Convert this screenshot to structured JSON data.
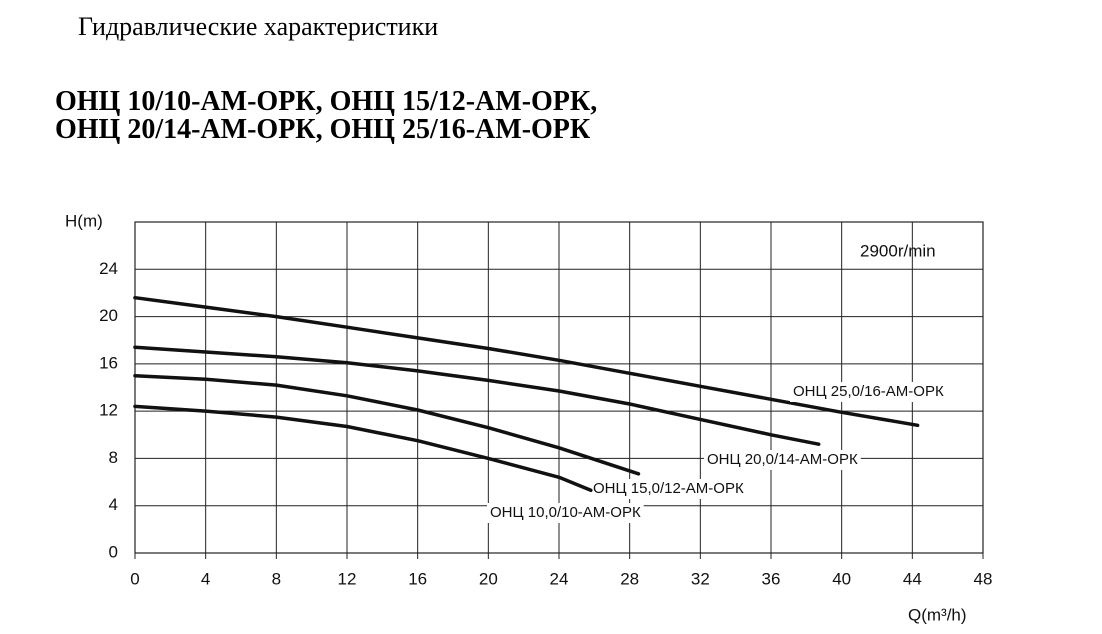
{
  "header": {
    "title": "Гидравлические характеристики",
    "models": [
      "ОНЦ 10/10-АМ-ОРК, ОНЦ 15/12-АМ-ОРК,",
      "ОНЦ 20/14-АМ-ОРК, ОНЦ 25/16-АМ-ОРК"
    ]
  },
  "chart_data": {
    "type": "line",
    "y_label": "H(m)",
    "x_label": "Q(m³/h)",
    "annotation": "2900r/min",
    "xlim": [
      0,
      48
    ],
    "xticks": [
      0,
      4,
      8,
      12,
      16,
      20,
      24,
      28,
      32,
      36,
      40,
      44,
      48
    ],
    "ylim": [
      0,
      28
    ],
    "yticks": [
      0,
      4,
      8,
      12,
      16,
      20,
      24
    ],
    "grid": true,
    "series": [
      {
        "name": "ОНЦ 25,0/16-АМ-ОРК",
        "color": "#111111",
        "x": [
          0,
          4,
          8,
          12,
          16,
          20,
          24,
          28,
          32,
          36,
          40,
          44.3
        ],
        "values": [
          21.6,
          20.8,
          20.0,
          19.1,
          18.2,
          17.3,
          16.3,
          15.2,
          14.1,
          13.0,
          11.9,
          10.8
        ]
      },
      {
        "name": "ОНЦ 20,0/14-АМ-ОРК",
        "color": "#111111",
        "x": [
          0,
          4,
          8,
          12,
          16,
          20,
          24,
          28,
          32,
          36,
          38.7
        ],
        "values": [
          17.4,
          17.0,
          16.6,
          16.1,
          15.4,
          14.6,
          13.7,
          12.6,
          11.3,
          10.0,
          9.2
        ]
      },
      {
        "name": "ОНЦ 15,0/12-АМ-ОРК",
        "color": "#111111",
        "x": [
          0,
          4,
          8,
          12,
          16,
          20,
          24,
          28.5
        ],
        "values": [
          15.0,
          14.7,
          14.2,
          13.3,
          12.1,
          10.6,
          8.9,
          6.7
        ]
      },
      {
        "name": "ОНЦ 10,0/10-АМ-ОРК",
        "color": "#111111",
        "x": [
          0,
          4,
          8,
          12,
          16,
          20,
          24,
          25.8
        ],
        "values": [
          12.4,
          12.0,
          11.5,
          10.7,
          9.5,
          8.0,
          6.4,
          5.3
        ]
      }
    ]
  }
}
